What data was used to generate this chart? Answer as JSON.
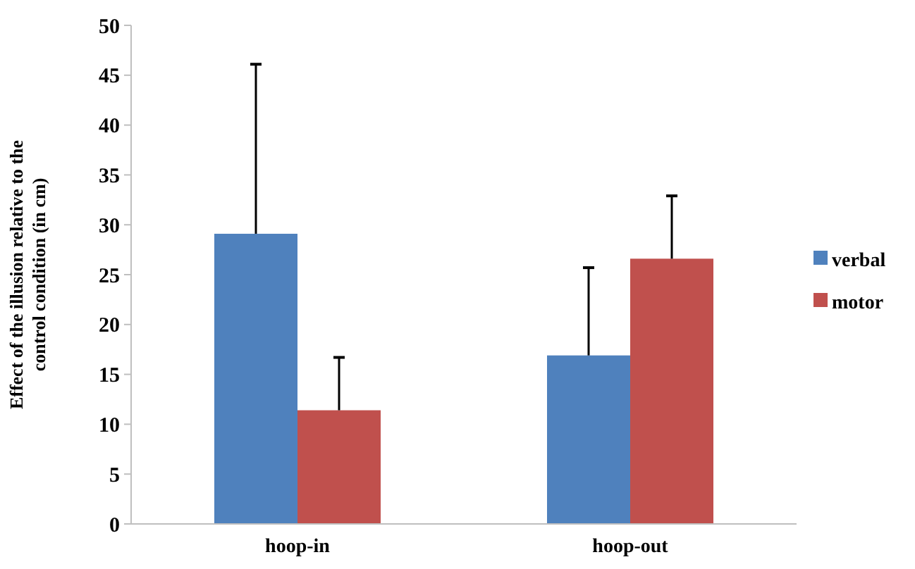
{
  "chart_data": {
    "type": "bar",
    "ylabel": "Effect of the illusion relative to the\ncontrol condition (in cm)",
    "categories": [
      "hoop-in",
      "hoop-out"
    ],
    "series": [
      {
        "name": "verbal",
        "color": "#4f81bd",
        "values": [
          29.1,
          16.9
        ],
        "errors": [
          [
            29.1,
            46.1
          ],
          [
            16.9,
            25.7
          ]
        ]
      },
      {
        "name": "motor",
        "color": "#c0504d",
        "values": [
          11.4,
          26.6
        ],
        "errors": [
          [
            11.4,
            16.7
          ],
          [
            26.6,
            32.9
          ]
        ]
      }
    ],
    "ylim": [
      0,
      50
    ],
    "yticks": [
      0,
      5,
      10,
      15,
      20,
      25,
      30,
      35,
      40,
      45,
      50
    ],
    "legend": "right",
    "grid": false
  }
}
